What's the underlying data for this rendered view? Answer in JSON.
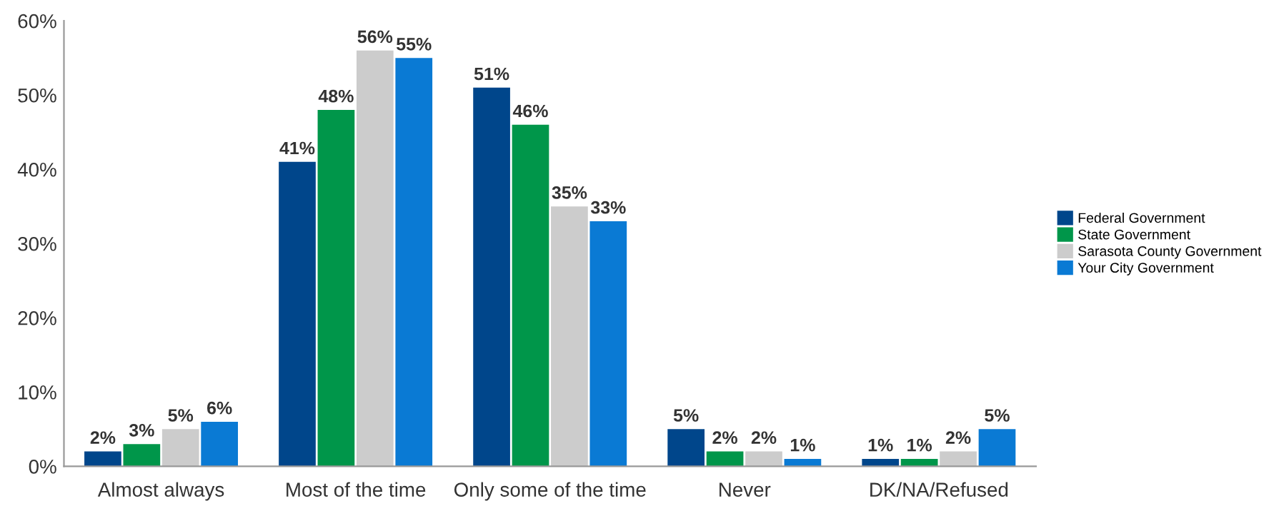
{
  "chart_data": {
    "type": "bar",
    "categories": [
      "Almost always",
      "Most of the time",
      "Only some of the time",
      "Never",
      "DK/NA/Refused"
    ],
    "series": [
      {
        "name": "Federal Government",
        "color": "#00468b",
        "values": [
          2,
          41,
          51,
          5,
          1
        ],
        "value_labels": [
          "2%",
          "41%",
          "51%",
          "5%",
          "1%"
        ]
      },
      {
        "name": "State Government",
        "color": "#00964a",
        "values": [
          3,
          48,
          46,
          2,
          1
        ],
        "value_labels": [
          "3%",
          "48%",
          "46%",
          "2%",
          "1%"
        ]
      },
      {
        "name": "Sarasota County Government",
        "color": "#cccccc",
        "values": [
          5,
          56,
          35,
          2,
          2
        ],
        "value_labels": [
          "5%",
          "56%",
          "35%",
          "2%",
          "2%"
        ]
      },
      {
        "name": "Your City Government",
        "color": "#0a7ad4",
        "values": [
          6,
          55,
          33,
          1,
          5
        ],
        "value_labels": [
          "6%",
          "55%",
          "33%",
          "1%",
          "5%"
        ]
      }
    ],
    "ylim": [
      0,
      60
    ],
    "yticks": [
      {
        "value": 0,
        "label": "0%"
      },
      {
        "value": 10,
        "label": "10%"
      },
      {
        "value": 20,
        "label": "20%"
      },
      {
        "value": 30,
        "label": "30%"
      },
      {
        "value": 40,
        "label": "40%"
      },
      {
        "value": 50,
        "label": "50%"
      },
      {
        "value": 60,
        "label": "60%"
      }
    ],
    "grid": false,
    "legend": "right"
  }
}
